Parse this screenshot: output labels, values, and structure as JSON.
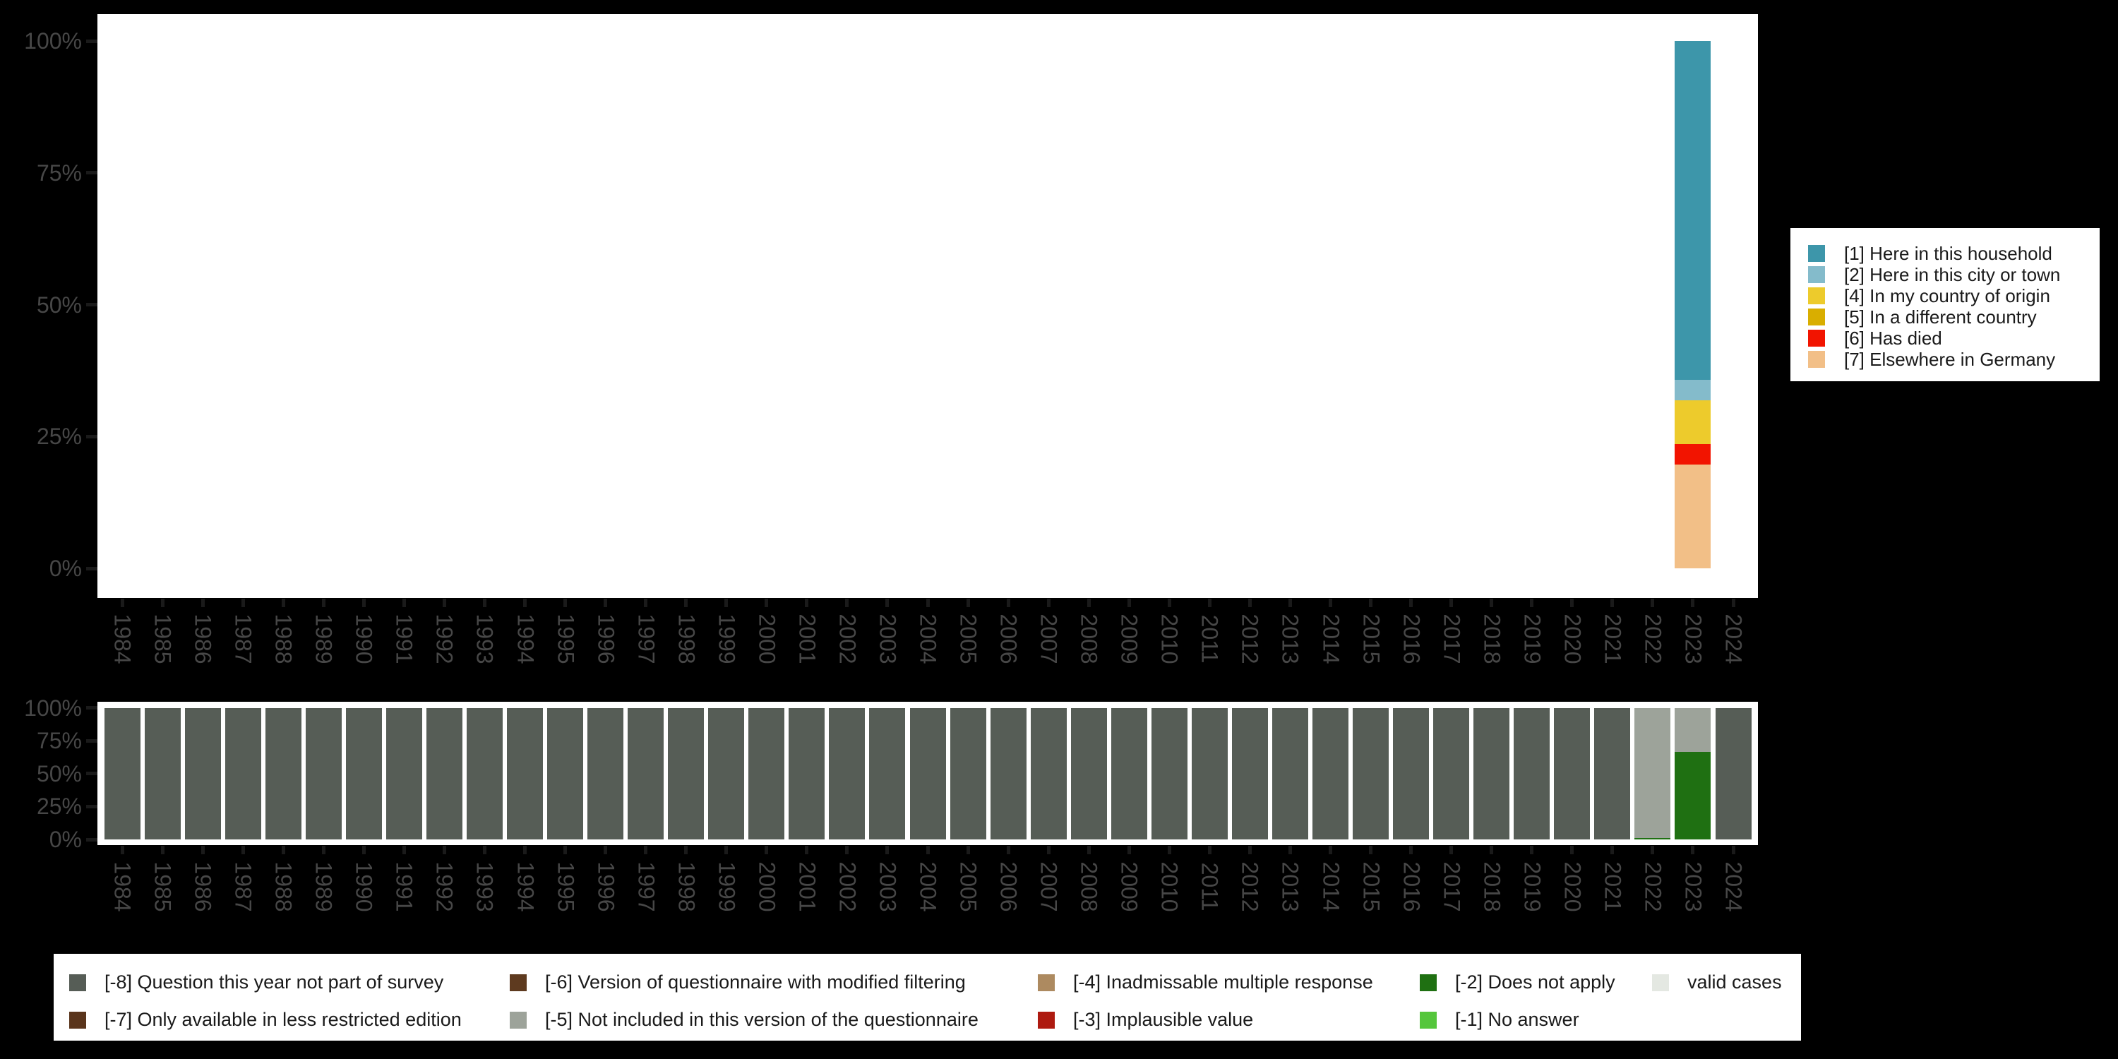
{
  "style": {
    "page_background": "#000000",
    "plot_background": "#ffffff",
    "axis_text_color": "#474747",
    "axis_tick_color": "#1a1a1a",
    "legend_text_color": "#1a1a1a"
  },
  "chart_data": [
    {
      "id": "values-distribution",
      "type": "bar",
      "stacked": true,
      "title": "",
      "xlabel": "",
      "ylabel": "",
      "ylim": [
        0,
        100
      ],
      "grid": false,
      "legend_position": "right",
      "yticks": [
        {
          "value": 100,
          "label": "100%"
        },
        {
          "value": 75,
          "label": "75%"
        },
        {
          "value": 50,
          "label": "50%"
        },
        {
          "value": 25,
          "label": "25%"
        },
        {
          "value": 0,
          "label": "0%"
        }
      ],
      "categories": [
        "1984",
        "1985",
        "1986",
        "1987",
        "1988",
        "1989",
        "1990",
        "1991",
        "1992",
        "1993",
        "1994",
        "1995",
        "1996",
        "1997",
        "1998",
        "1999",
        "2000",
        "2001",
        "2002",
        "2003",
        "2004",
        "2005",
        "2006",
        "2007",
        "2008",
        "2009",
        "2010",
        "2011",
        "2012",
        "2013",
        "2014",
        "2015",
        "2016",
        "2017",
        "2018",
        "2019",
        "2020",
        "2021",
        "2022",
        "2023",
        "2024"
      ],
      "series": [
        {
          "name": "[1] Here in this household",
          "color": "#3D96AA",
          "values": {
            "2023": 64.3
          }
        },
        {
          "name": "[2] Here in this city or town",
          "color": "#84BBCB",
          "values": {
            "2023": 3.9
          }
        },
        {
          "name": "[4] In my country of origin",
          "color": "#EDCB2C",
          "values": {
            "2023": 8.2
          }
        },
        {
          "name": "[5] In a different country",
          "color": "#D9AE00",
          "values": {}
        },
        {
          "name": "[6] Has died",
          "color": "#F21400",
          "values": {
            "2023": 3.9
          }
        },
        {
          "name": "[7] Elsewhere in Germany",
          "color": "#F2BF87",
          "values": {
            "2023": 19.7
          }
        }
      ]
    },
    {
      "id": "missings-distribution",
      "type": "bar",
      "stacked": true,
      "title": "",
      "xlabel": "",
      "ylabel": "",
      "ylim": [
        0,
        100
      ],
      "grid": false,
      "legend_position": "bottom",
      "yticks": [
        {
          "value": 100,
          "label": "100%"
        },
        {
          "value": 75,
          "label": "75%"
        },
        {
          "value": 50,
          "label": "50%"
        },
        {
          "value": 25,
          "label": "25%"
        },
        {
          "value": 0,
          "label": "0%"
        }
      ],
      "categories": [
        "1984",
        "1985",
        "1986",
        "1987",
        "1988",
        "1989",
        "1990",
        "1991",
        "1992",
        "1993",
        "1994",
        "1995",
        "1996",
        "1997",
        "1998",
        "1999",
        "2000",
        "2001",
        "2002",
        "2003",
        "2004",
        "2005",
        "2006",
        "2007",
        "2008",
        "2009",
        "2010",
        "2011",
        "2012",
        "2013",
        "2014",
        "2015",
        "2016",
        "2017",
        "2018",
        "2019",
        "2020",
        "2021",
        "2022",
        "2023",
        "2024"
      ],
      "series": [
        {
          "name": "[-8] Question this year not part of survey",
          "color": "#565D56",
          "values": {
            "1984": 100,
            "1985": 100,
            "1986": 100,
            "1987": 100,
            "1988": 100,
            "1989": 100,
            "1990": 100,
            "1991": 100,
            "1992": 100,
            "1993": 100,
            "1994": 100,
            "1995": 100,
            "1996": 100,
            "1997": 100,
            "1998": 100,
            "1999": 100,
            "2000": 100,
            "2001": 100,
            "2002": 100,
            "2003": 100,
            "2004": 100,
            "2005": 100,
            "2006": 100,
            "2007": 100,
            "2008": 100,
            "2009": 100,
            "2010": 100,
            "2011": 100,
            "2012": 100,
            "2013": 100,
            "2014": 100,
            "2015": 100,
            "2016": 100,
            "2017": 100,
            "2018": 100,
            "2019": 100,
            "2020": 100,
            "2021": 100,
            "2024": 100
          }
        },
        {
          "name": "[-5] Not included in this version of the questionnaire",
          "color": "#9DA39A",
          "values": {
            "2022": 99,
            "2023": 33.5
          }
        },
        {
          "name": "[-2] Does not apply",
          "color": "#1F7012",
          "values": {
            "2022": 1,
            "2023": 66.5
          }
        }
      ]
    }
  ],
  "missings_legend": {
    "columns": [
      [
        {
          "label": "[-8] Question this year not part of survey",
          "color": "#565D56"
        },
        {
          "label": "[-7] Only available in less restricted edition",
          "color": "#5A351C"
        }
      ],
      [
        {
          "label": "[-6] Version of questionnaire with modified filtering",
          "color": "#5E3A1F"
        },
        {
          "label": "[-5] Not included in this version of the questionnaire",
          "color": "#9DA39A"
        }
      ],
      [
        {
          "label": "[-4] Inadmissable multiple response",
          "color": "#AD8A60"
        },
        {
          "label": "[-3] Implausible value",
          "color": "#AE1A10"
        }
      ],
      [
        {
          "label": "[-2] Does not apply",
          "color": "#1F7012"
        },
        {
          "label": "[-1] No answer",
          "color": "#55C63C"
        }
      ],
      [
        {
          "label": "valid cases",
          "color": "#E4E8E2"
        }
      ]
    ]
  }
}
